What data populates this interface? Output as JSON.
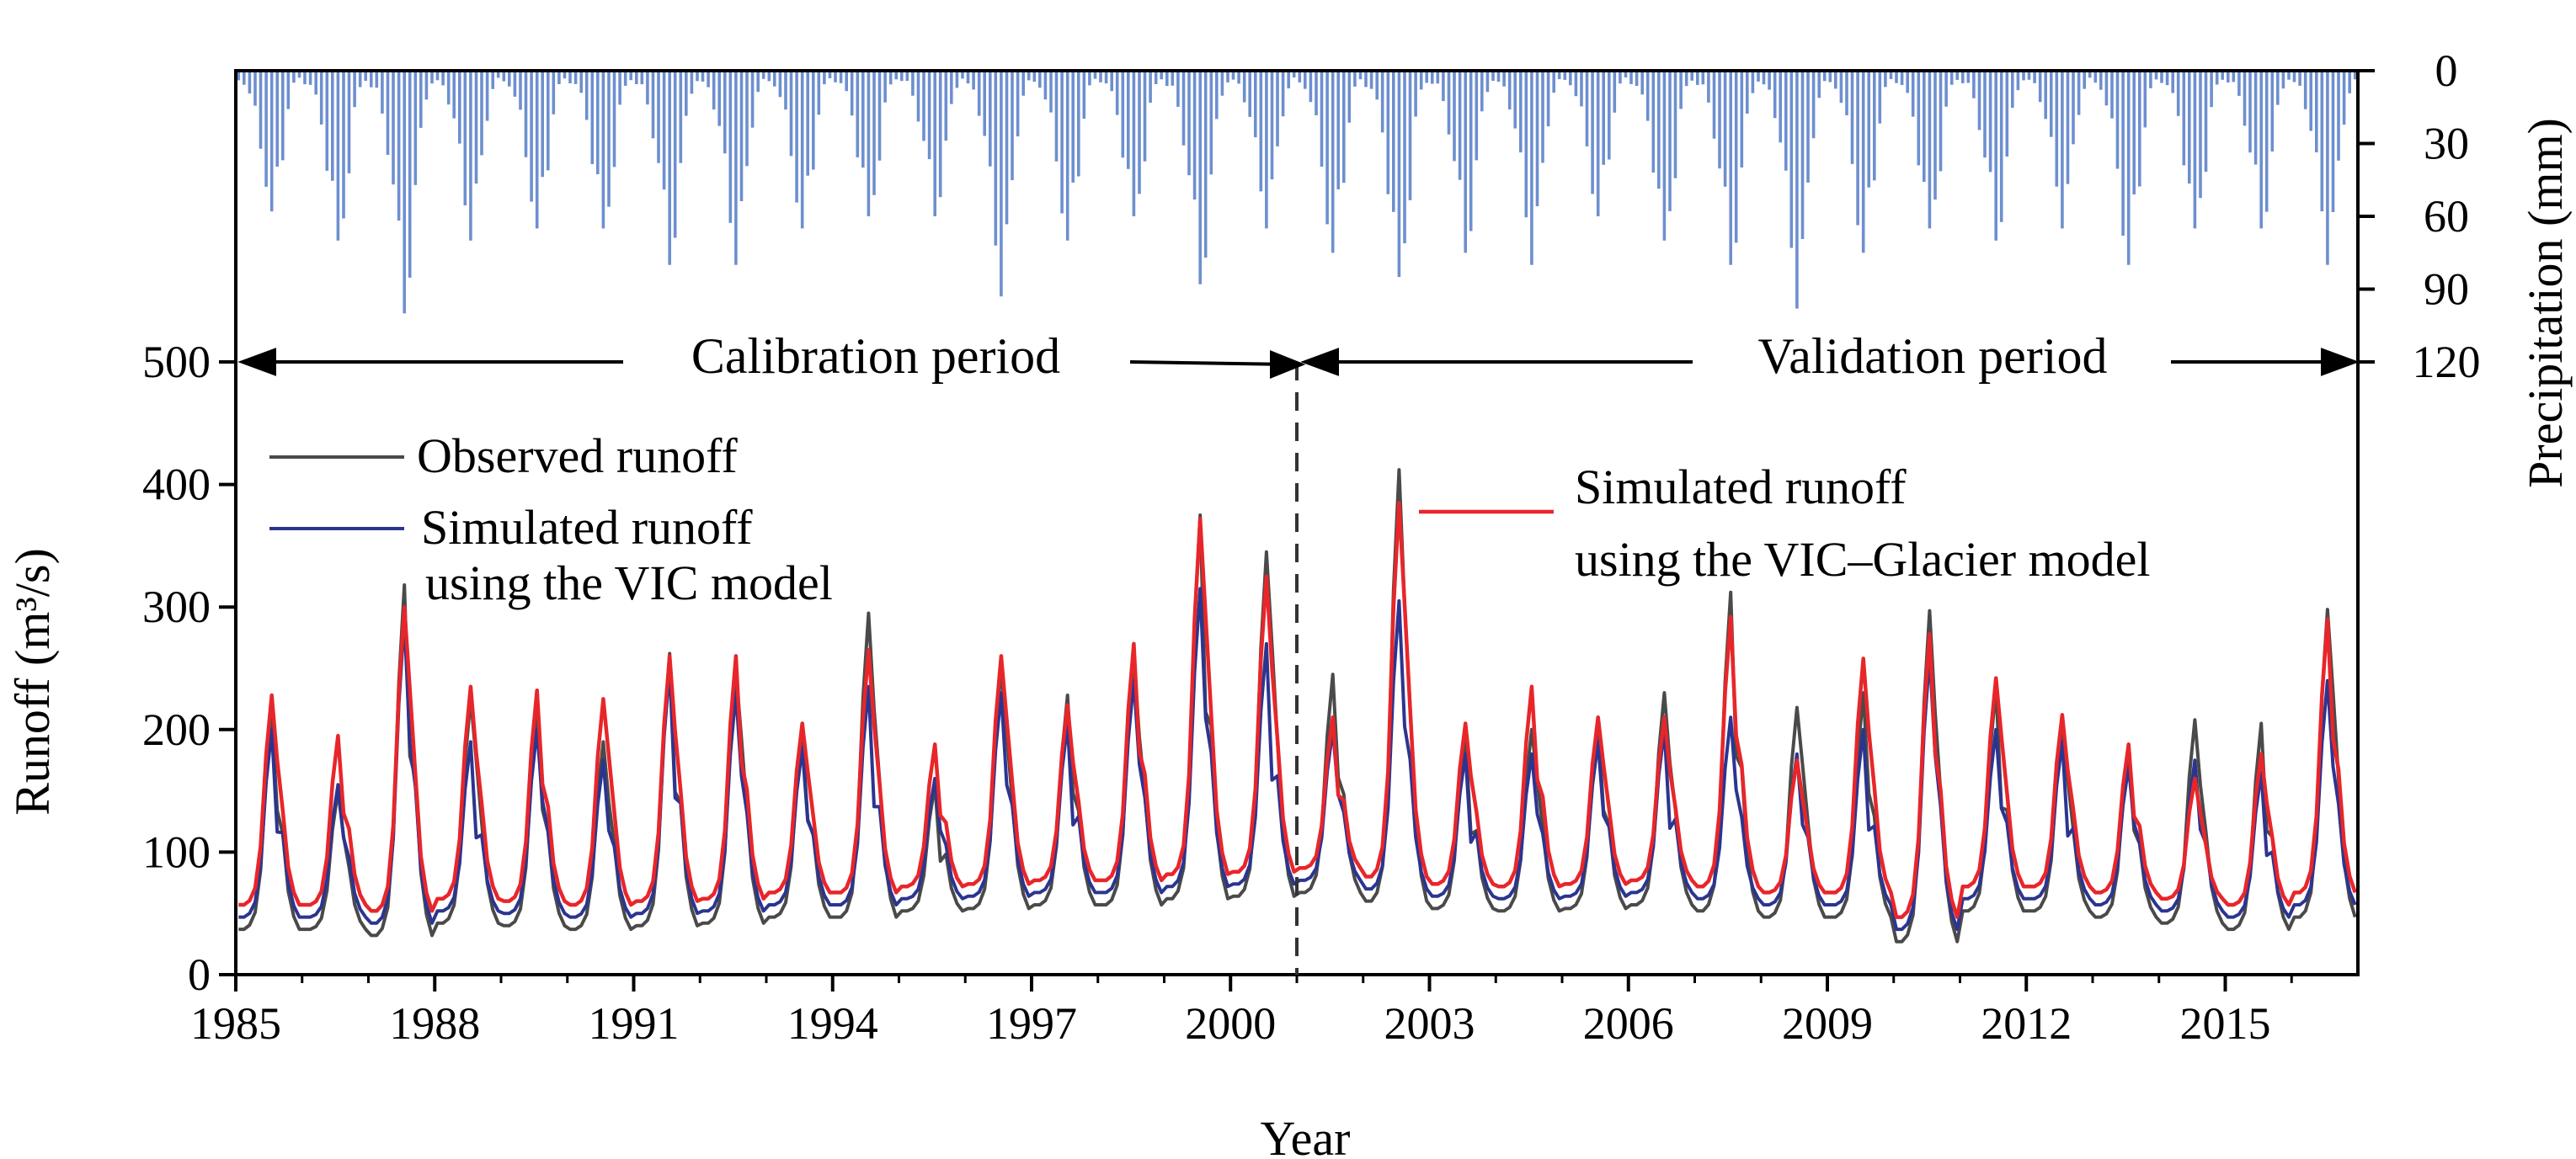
{
  "chart_data": {
    "type": "line",
    "title": "",
    "xlabel": "Year",
    "ylabel_runoff": "Runoff (m³/s)",
    "ylabel_precip": "Precipitation (mm)",
    "x_range": [
      1985,
      2017
    ],
    "runoff_ylim": [
      0,
      500
    ],
    "precip_ylim": [
      0,
      120
    ],
    "x_ticks": [
      "1985",
      "1988",
      "1991",
      "1994",
      "1997",
      "2000",
      "2003",
      "2006",
      "2009",
      "2012",
      "2015"
    ],
    "runoff_ticks": [
      "0",
      "100",
      "200",
      "300",
      "400",
      "500"
    ],
    "precip_ticks": [
      "0",
      "30",
      "60",
      "90",
      "120"
    ],
    "periods": {
      "calibration": "Calibration period",
      "validation": "Validation period",
      "split_year": 2001
    },
    "legend": {
      "observed": "Observed runoff",
      "vic_line1": "Simulated runoff",
      "vic_line2": "using the VIC model",
      "glacier_line1": "Simulated runoff",
      "glacier_line2": "using the VIC–Glacier model"
    },
    "colors": {
      "observed": "#4a4a4a",
      "vic": "#2b3590",
      "glacier": "#e8262a",
      "precip": "#6d8fcf",
      "axis": "#000000"
    },
    "annual_peaks": {
      "years": [
        1985,
        1986,
        1987,
        1988,
        1989,
        1990,
        1991,
        1992,
        1993,
        1994,
        1995,
        1996,
        1997,
        1998,
        1999,
        2000,
        2001,
        2002,
        2003,
        2004,
        2005,
        2006,
        2007,
        2008,
        2009,
        2010,
        2011,
        2012,
        2013,
        2014,
        2015,
        2016
      ],
      "observed": [
        210,
        150,
        318,
        225,
        210,
        190,
        262,
        248,
        195,
        295,
        155,
        250,
        228,
        260,
        375,
        345,
        245,
        412,
        195,
        200,
        205,
        230,
        312,
        218,
        230,
        297,
        235,
        200,
        180,
        208,
        205,
        298
      ],
      "vic": [
        200,
        155,
        290,
        190,
        200,
        175,
        250,
        230,
        185,
        235,
        160,
        230,
        205,
        240,
        315,
        270,
        200,
        305,
        180,
        180,
        190,
        200,
        210,
        180,
        200,
        260,
        200,
        190,
        170,
        175,
        165,
        240
      ],
      "glacier": [
        228,
        195,
        300,
        235,
        232,
        225,
        260,
        260,
        205,
        265,
        188,
        260,
        220,
        270,
        372,
        325,
        210,
        385,
        205,
        235,
        210,
        210,
        292,
        175,
        258,
        278,
        242,
        212,
        188,
        160,
        180,
        290
      ],
      "base": [
        45,
        45,
        40,
        50,
        48,
        45,
        48,
        50,
        55,
        55,
        60,
        62,
        65,
        65,
        70,
        72,
        75,
        68,
        62,
        60,
        62,
        65,
        60,
        55,
        55,
        35,
        60,
        60,
        55,
        50,
        45,
        55
      ]
    },
    "precipitation_monthly_peaks": {
      "years": [
        1985,
        1986,
        1987,
        1988,
        1989,
        1990,
        1991,
        1992,
        1993,
        1994,
        1995,
        1996,
        1997,
        1998,
        1999,
        2000,
        2001,
        2002,
        2003,
        2004,
        2005,
        2006,
        2007,
        2008,
        2009,
        2010,
        2011,
        2012,
        2013,
        2014,
        2015,
        2016
      ],
      "max_mm": [
        58,
        70,
        100,
        70,
        65,
        65,
        80,
        80,
        65,
        60,
        60,
        93,
        70,
        60,
        88,
        65,
        75,
        85,
        75,
        80,
        60,
        70,
        80,
        98,
        75,
        65,
        70,
        65,
        80,
        65,
        65,
        80
      ]
    }
  }
}
